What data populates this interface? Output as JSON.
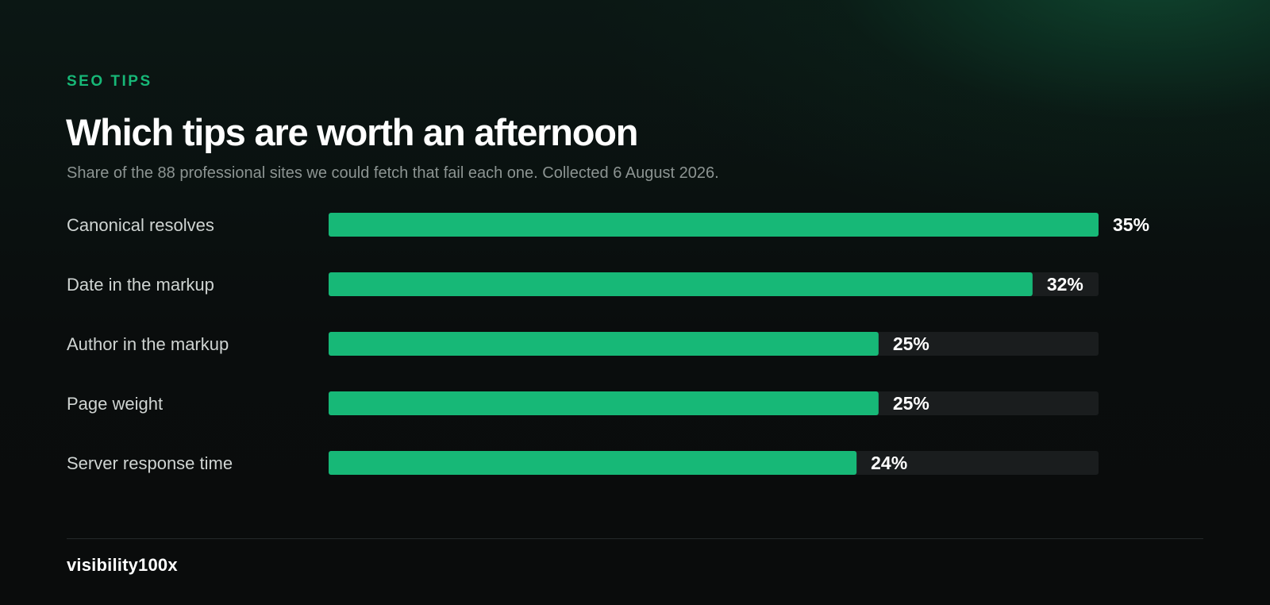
{
  "eyebrow": "SEO TIPS",
  "title": "Which tips are worth an afternoon",
  "subtitle": "Share of the 88 professional sites we could fetch that fail each one. Collected 6 August 2026.",
  "brand": "visibility100x",
  "colors": {
    "accent": "#17b877",
    "track": "#1a1d1e",
    "background": "#0a0c0c"
  },
  "chart_data": {
    "type": "bar",
    "orientation": "horizontal",
    "title": "Which tips are worth an afternoon",
    "categories": [
      "Canonical resolves",
      "Date in the markup",
      "Author in the markup",
      "Page weight",
      "Server response time"
    ],
    "values": [
      35,
      32,
      25,
      25,
      24
    ],
    "value_labels": [
      "35%",
      "32%",
      "25%",
      "25%",
      "24%"
    ],
    "xlim": [
      0,
      35
    ],
    "unit": "%",
    "grid": false,
    "legend": "none"
  }
}
